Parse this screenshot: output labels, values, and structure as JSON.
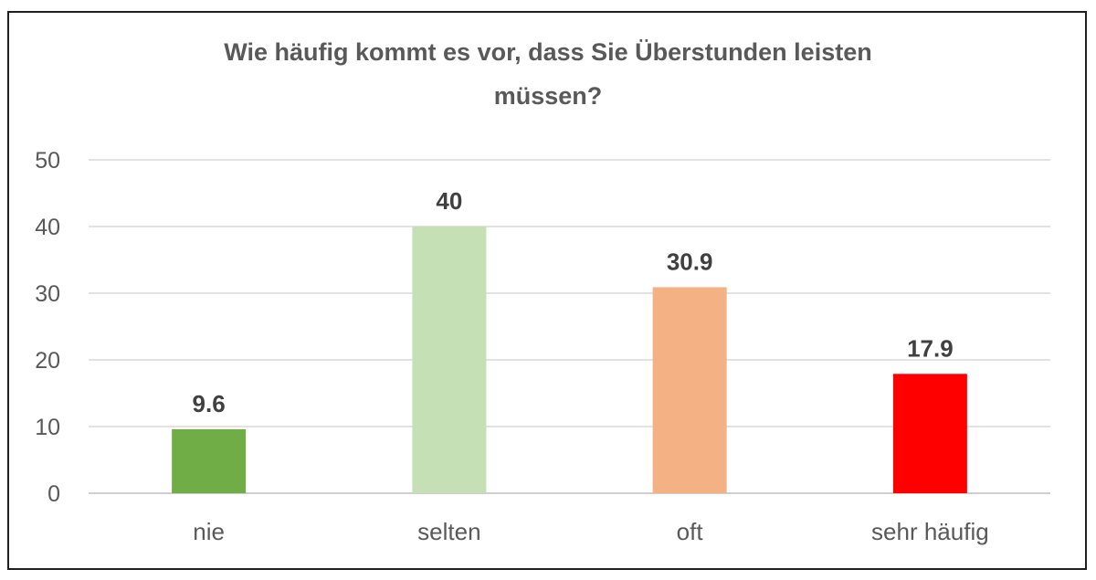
{
  "chart_data": {
    "type": "bar",
    "title_lines": [
      "Wie häufig kommt es vor, dass Sie Überstunden leisten",
      "müssen?"
    ],
    "categories": [
      "nie",
      "selten",
      "oft",
      "sehr häufig"
    ],
    "values": [
      9.6,
      40,
      30.9,
      17.9
    ],
    "value_labels": [
      "9.6",
      "40",
      "30.9",
      "17.9"
    ],
    "colors": [
      "#70ad47",
      "#c5e0b4",
      "#f4b183",
      "#ff0000"
    ],
    "ylim": [
      0,
      50
    ],
    "yticks": [
      0,
      10,
      20,
      30,
      40,
      50
    ],
    "grid": true,
    "legend": "none",
    "xlabel": "",
    "ylabel": ""
  }
}
